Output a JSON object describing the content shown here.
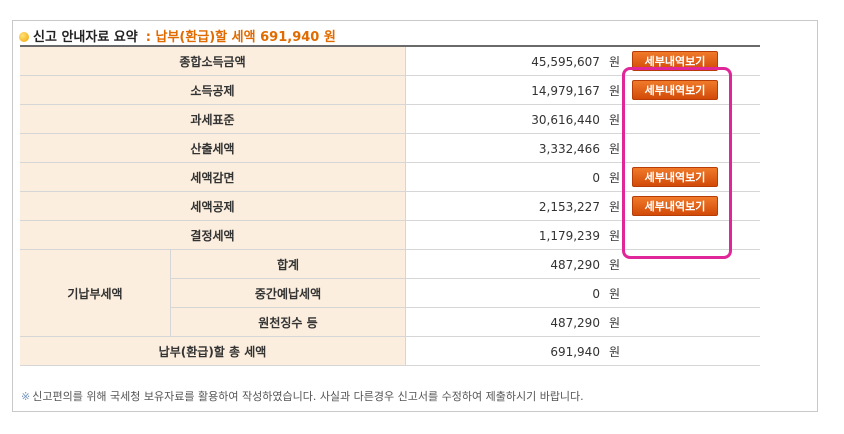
{
  "header": {
    "title": "신고 안내자료 요약",
    "amount_text": ": 납부(환급)할 세액 691,940 원"
  },
  "unit": "원",
  "detail_button_label": "세부내역보기",
  "rows": [
    {
      "label": "종합소득금액",
      "value": "45,595,607"
    },
    {
      "label": "소득공제",
      "value": "14,979,167"
    },
    {
      "label": "과세표준",
      "value": "30,616,440"
    },
    {
      "label": "산출세액",
      "value": "3,332,466"
    },
    {
      "label": "세액감면",
      "value": "0"
    },
    {
      "label": "세액공제",
      "value": "2,153,227"
    },
    {
      "label": "결정세액",
      "value": "1,179,239"
    }
  ],
  "prepaid": {
    "group_label": "기납부세액",
    "items": [
      {
        "label": "합계",
        "value": "487,290"
      },
      {
        "label": "중간예납세액",
        "value": "0"
      },
      {
        "label": "원천징수 등",
        "value": "487,290"
      }
    ]
  },
  "total": {
    "label": "납부(환급)할 총 세액",
    "value": "691,940"
  },
  "note": {
    "mark": "※",
    "text": "신고편의를 위해 국세청 보유자료를 활용하여 작성하였습니다. 사실과 다른경우 신고서를 수정하여 제출하시기 바랍니다."
  },
  "colors": {
    "accent": "#e06b00",
    "label_bg": "#fbeede",
    "button": "#e05a10",
    "highlight": "#e0279a"
  }
}
